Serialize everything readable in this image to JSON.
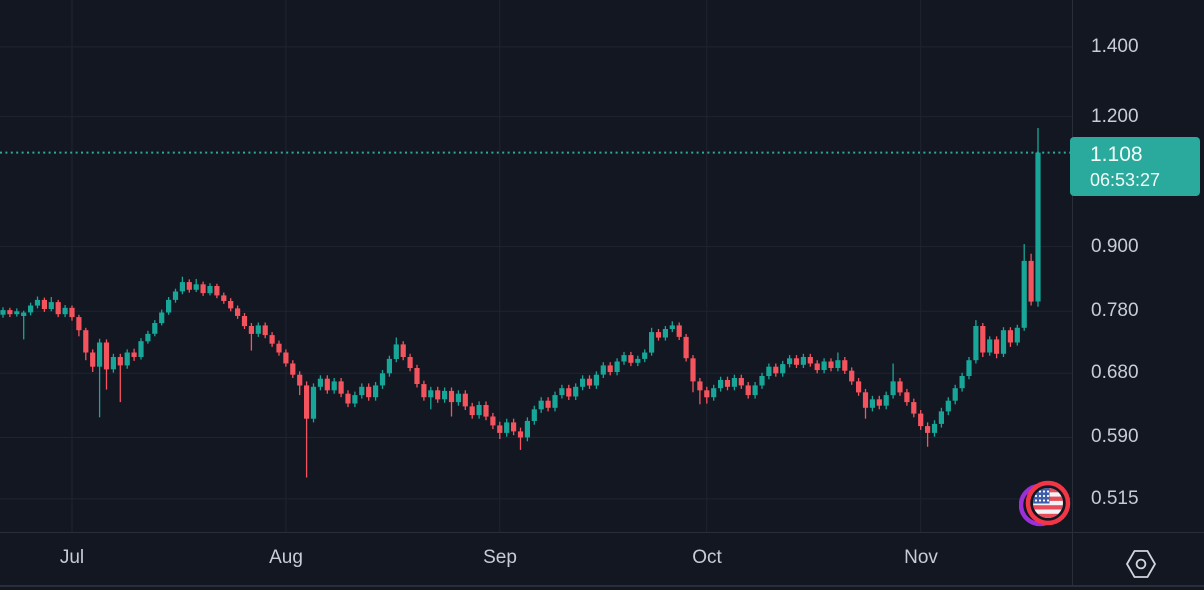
{
  "chart": {
    "background": "#131722",
    "grid_color": "#1F2431",
    "axis_border_color": "#2A2E39",
    "axis_text_color": "#C9CCD4",
    "up_color": "#17A697",
    "down_color": "#F4545E",
    "accent_teal": "#2AAA9D",
    "price_label": {
      "price": "1.108",
      "countdown": "06:53:27"
    },
    "price_axis": {
      "ticks": [
        "1.400",
        "1.200",
        "0.900",
        "0.780",
        "0.680",
        "0.590",
        "0.515"
      ]
    },
    "time_axis": {
      "months": [
        "Jul",
        "Aug",
        "Sep",
        "Oct",
        "Nov"
      ]
    },
    "icons": {
      "sticker": "us-flag-circle",
      "corner_button": "hexagon-dot-settings"
    }
  },
  "chart_data": {
    "type": "candlestick",
    "scale": "logarithmic",
    "interval_hint": "daily candles, late Jun through mid Nov",
    "y_axis_ticks": [
      1.4,
      1.2,
      0.9,
      0.78,
      0.68,
      0.59,
      0.515
    ],
    "y_axis_tick_labels": [
      "1.400",
      "1.200",
      "0.900",
      "0.780",
      "0.680",
      "0.590",
      "0.515"
    ],
    "x_axis_ticks": [
      "Jul",
      "Aug",
      "Sep",
      "Oct",
      "Nov"
    ],
    "month_start_indices": {
      "Jul": 10,
      "Aug": 41,
      "Sep": 72,
      "Oct": 102,
      "Nov": 133
    },
    "last_price": 1.108,
    "countdown": "06:53:27",
    "legend_position": "none",
    "grid": true,
    "candles_ohlc": [
      [
        0.774,
        0.787,
        0.769,
        0.782
      ],
      [
        0.782,
        0.786,
        0.77,
        0.775
      ],
      [
        0.775,
        0.785,
        0.771,
        0.78
      ],
      [
        0.772,
        0.781,
        0.733,
        0.778
      ],
      [
        0.778,
        0.795,
        0.773,
        0.79
      ],
      [
        0.79,
        0.806,
        0.785,
        0.8
      ],
      [
        0.8,
        0.804,
        0.779,
        0.784
      ],
      [
        0.784,
        0.805,
        0.78,
        0.796
      ],
      [
        0.796,
        0.8,
        0.77,
        0.775
      ],
      [
        0.775,
        0.791,
        0.77,
        0.786
      ],
      [
        0.786,
        0.79,
        0.764,
        0.77
      ],
      [
        0.77,
        0.774,
        0.738,
        0.748
      ],
      [
        0.748,
        0.752,
        0.7,
        0.712
      ],
      [
        0.712,
        0.717,
        0.682,
        0.69
      ],
      [
        0.69,
        0.734,
        0.617,
        0.728
      ],
      [
        0.728,
        0.733,
        0.656,
        0.686
      ],
      [
        0.686,
        0.71,
        0.681,
        0.705
      ],
      [
        0.705,
        0.71,
        0.638,
        0.692
      ],
      [
        0.692,
        0.717,
        0.687,
        0.712
      ],
      [
        0.712,
        0.718,
        0.699,
        0.705
      ],
      [
        0.705,
        0.735,
        0.701,
        0.73
      ],
      [
        0.73,
        0.747,
        0.726,
        0.742
      ],
      [
        0.742,
        0.765,
        0.738,
        0.76
      ],
      [
        0.76,
        0.783,
        0.756,
        0.778
      ],
      [
        0.778,
        0.805,
        0.774,
        0.8
      ],
      [
        0.8,
        0.82,
        0.795,
        0.815
      ],
      [
        0.815,
        0.842,
        0.81,
        0.832
      ],
      [
        0.832,
        0.837,
        0.813,
        0.818
      ],
      [
        0.818,
        0.838,
        0.814,
        0.828
      ],
      [
        0.828,
        0.833,
        0.807,
        0.812
      ],
      [
        0.812,
        0.83,
        0.808,
        0.825
      ],
      [
        0.825,
        0.829,
        0.803,
        0.808
      ],
      [
        0.808,
        0.813,
        0.793,
        0.798
      ],
      [
        0.798,
        0.803,
        0.78,
        0.785
      ],
      [
        0.785,
        0.79,
        0.767,
        0.772
      ],
      [
        0.772,
        0.777,
        0.75,
        0.755
      ],
      [
        0.755,
        0.76,
        0.715,
        0.742
      ],
      [
        0.742,
        0.761,
        0.737,
        0.756
      ],
      [
        0.756,
        0.761,
        0.735,
        0.74
      ],
      [
        0.74,
        0.745,
        0.721,
        0.726
      ],
      [
        0.726,
        0.731,
        0.707,
        0.712
      ],
      [
        0.712,
        0.717,
        0.69,
        0.695
      ],
      [
        0.695,
        0.7,
        0.673,
        0.678
      ],
      [
        0.678,
        0.683,
        0.648,
        0.662
      ],
      [
        0.662,
        0.668,
        0.54,
        0.615
      ],
      [
        0.615,
        0.665,
        0.61,
        0.66
      ],
      [
        0.66,
        0.677,
        0.655,
        0.672
      ],
      [
        0.672,
        0.677,
        0.65,
        0.655
      ],
      [
        0.655,
        0.673,
        0.65,
        0.668
      ],
      [
        0.668,
        0.673,
        0.645,
        0.65
      ],
      [
        0.65,
        0.655,
        0.631,
        0.636
      ],
      [
        0.636,
        0.653,
        0.631,
        0.648
      ],
      [
        0.648,
        0.665,
        0.643,
        0.66
      ],
      [
        0.66,
        0.665,
        0.64,
        0.645
      ],
      [
        0.645,
        0.667,
        0.64,
        0.662
      ],
      [
        0.662,
        0.685,
        0.657,
        0.68
      ],
      [
        0.68,
        0.707,
        0.675,
        0.702
      ],
      [
        0.702,
        0.736,
        0.697,
        0.725
      ],
      [
        0.725,
        0.73,
        0.7,
        0.705
      ],
      [
        0.705,
        0.71,
        0.683,
        0.688
      ],
      [
        0.688,
        0.693,
        0.659,
        0.664
      ],
      [
        0.664,
        0.669,
        0.64,
        0.645
      ],
      [
        0.645,
        0.66,
        0.628,
        0.655
      ],
      [
        0.655,
        0.66,
        0.637,
        0.642
      ],
      [
        0.642,
        0.659,
        0.637,
        0.654
      ],
      [
        0.654,
        0.659,
        0.618,
        0.638
      ],
      [
        0.638,
        0.655,
        0.633,
        0.65
      ],
      [
        0.65,
        0.655,
        0.627,
        0.632
      ],
      [
        0.632,
        0.637,
        0.615,
        0.62
      ],
      [
        0.62,
        0.639,
        0.615,
        0.634
      ],
      [
        0.634,
        0.639,
        0.613,
        0.618
      ],
      [
        0.618,
        0.623,
        0.601,
        0.606
      ],
      [
        0.606,
        0.611,
        0.588,
        0.596
      ],
      [
        0.596,
        0.615,
        0.591,
        0.61
      ],
      [
        0.61,
        0.615,
        0.593,
        0.598
      ],
      [
        0.598,
        0.603,
        0.574,
        0.59
      ],
      [
        0.59,
        0.617,
        0.585,
        0.612
      ],
      [
        0.612,
        0.633,
        0.607,
        0.628
      ],
      [
        0.628,
        0.645,
        0.623,
        0.64
      ],
      [
        0.64,
        0.645,
        0.625,
        0.63
      ],
      [
        0.63,
        0.653,
        0.625,
        0.648
      ],
      [
        0.648,
        0.663,
        0.643,
        0.658
      ],
      [
        0.658,
        0.663,
        0.641,
        0.646
      ],
      [
        0.646,
        0.665,
        0.641,
        0.66
      ],
      [
        0.66,
        0.677,
        0.655,
        0.672
      ],
      [
        0.672,
        0.677,
        0.657,
        0.662
      ],
      [
        0.662,
        0.683,
        0.657,
        0.678
      ],
      [
        0.678,
        0.697,
        0.673,
        0.692
      ],
      [
        0.692,
        0.697,
        0.677,
        0.682
      ],
      [
        0.682,
        0.703,
        0.677,
        0.698
      ],
      [
        0.698,
        0.713,
        0.693,
        0.708
      ],
      [
        0.708,
        0.713,
        0.691,
        0.696
      ],
      [
        0.696,
        0.707,
        0.691,
        0.702
      ],
      [
        0.702,
        0.717,
        0.697,
        0.712
      ],
      [
        0.712,
        0.752,
        0.707,
        0.745
      ],
      [
        0.745,
        0.75,
        0.731,
        0.736
      ],
      [
        0.736,
        0.755,
        0.731,
        0.75
      ],
      [
        0.75,
        0.763,
        0.745,
        0.756
      ],
      [
        0.756,
        0.761,
        0.732,
        0.737
      ],
      [
        0.737,
        0.742,
        0.698,
        0.703
      ],
      [
        0.703,
        0.708,
        0.652,
        0.668
      ],
      [
        0.668,
        0.673,
        0.635,
        0.655
      ],
      [
        0.655,
        0.66,
        0.636,
        0.645
      ],
      [
        0.645,
        0.663,
        0.64,
        0.658
      ],
      [
        0.658,
        0.675,
        0.653,
        0.67
      ],
      [
        0.67,
        0.675,
        0.655,
        0.66
      ],
      [
        0.66,
        0.678,
        0.655,
        0.673
      ],
      [
        0.673,
        0.678,
        0.657,
        0.662
      ],
      [
        0.662,
        0.667,
        0.643,
        0.648
      ],
      [
        0.648,
        0.667,
        0.643,
        0.662
      ],
      [
        0.662,
        0.681,
        0.657,
        0.676
      ],
      [
        0.676,
        0.695,
        0.671,
        0.69
      ],
      [
        0.69,
        0.695,
        0.675,
        0.68
      ],
      [
        0.68,
        0.699,
        0.675,
        0.694
      ],
      [
        0.694,
        0.708,
        0.689,
        0.703
      ],
      [
        0.703,
        0.708,
        0.688,
        0.693
      ],
      [
        0.693,
        0.71,
        0.688,
        0.705
      ],
      [
        0.705,
        0.71,
        0.69,
        0.695
      ],
      [
        0.695,
        0.7,
        0.68,
        0.685
      ],
      [
        0.685,
        0.703,
        0.68,
        0.698
      ],
      [
        0.698,
        0.703,
        0.683,
        0.688
      ],
      [
        0.688,
        0.712,
        0.683,
        0.7
      ],
      [
        0.7,
        0.705,
        0.679,
        0.684
      ],
      [
        0.684,
        0.689,
        0.663,
        0.668
      ],
      [
        0.668,
        0.673,
        0.647,
        0.652
      ],
      [
        0.652,
        0.657,
        0.615,
        0.63
      ],
      [
        0.63,
        0.647,
        0.625,
        0.642
      ],
      [
        0.642,
        0.647,
        0.628,
        0.633
      ],
      [
        0.633,
        0.653,
        0.628,
        0.648
      ],
      [
        0.648,
        0.695,
        0.643,
        0.668
      ],
      [
        0.668,
        0.673,
        0.647,
        0.652
      ],
      [
        0.652,
        0.657,
        0.633,
        0.638
      ],
      [
        0.638,
        0.643,
        0.617,
        0.622
      ],
      [
        0.622,
        0.627,
        0.6,
        0.605
      ],
      [
        0.605,
        0.61,
        0.578,
        0.596
      ],
      [
        0.596,
        0.613,
        0.591,
        0.608
      ],
      [
        0.608,
        0.63,
        0.603,
        0.625
      ],
      [
        0.625,
        0.645,
        0.62,
        0.64
      ],
      [
        0.64,
        0.663,
        0.635,
        0.658
      ],
      [
        0.658,
        0.681,
        0.653,
        0.676
      ],
      [
        0.676,
        0.705,
        0.671,
        0.7
      ],
      [
        0.7,
        0.765,
        0.695,
        0.755
      ],
      [
        0.755,
        0.76,
        0.705,
        0.712
      ],
      [
        0.712,
        0.738,
        0.707,
        0.733
      ],
      [
        0.733,
        0.738,
        0.703,
        0.71
      ],
      [
        0.71,
        0.753,
        0.705,
        0.748
      ],
      [
        0.748,
        0.753,
        0.721,
        0.728
      ],
      [
        0.728,
        0.757,
        0.723,
        0.752
      ],
      [
        0.752,
        0.905,
        0.747,
        0.872
      ],
      [
        0.872,
        0.886,
        0.79,
        0.797
      ],
      [
        0.797,
        1.17,
        0.788,
        1.108
      ]
    ]
  }
}
